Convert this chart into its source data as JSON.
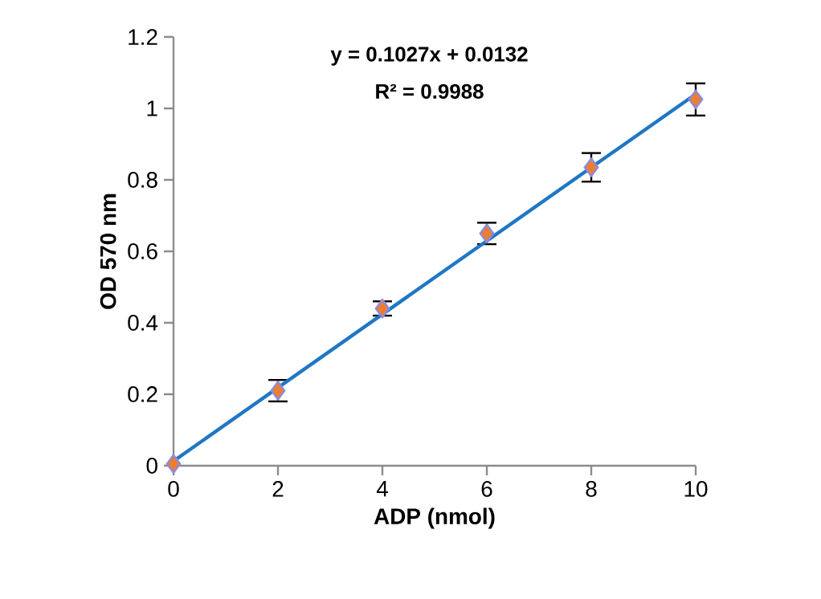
{
  "chart_data": {
    "type": "scatter",
    "xlabel": "ADP (nmol)",
    "ylabel": "OD 570 nm",
    "annotations": [
      "y = 0.1027x + 0.0132",
      "R² = 0.9988"
    ],
    "x": [
      0,
      2,
      4,
      6,
      8,
      10
    ],
    "series": [
      {
        "color": "#ed7d31",
        "marker": "diamond",
        "values": [
          0.005,
          0.21,
          0.44,
          0.65,
          0.835,
          1.025
        ],
        "errors": [
          null,
          0.03,
          0.02,
          0.03,
          0.04,
          0.045
        ]
      },
      {
        "type": "line",
        "color": "#1f77c4",
        "marker": "none",
        "line_style": "solid",
        "x": [
          0,
          10
        ],
        "values": [
          0.013,
          1.04
        ]
      }
    ],
    "xlim": [
      0,
      10
    ],
    "ylim": [
      0,
      1.2
    ],
    "xticks": [
      0,
      2,
      4,
      6,
      8,
      10
    ],
    "yticks": [
      0,
      0.2,
      0.4,
      0.6,
      0.8,
      1,
      1.2
    ],
    "grid": false
  }
}
